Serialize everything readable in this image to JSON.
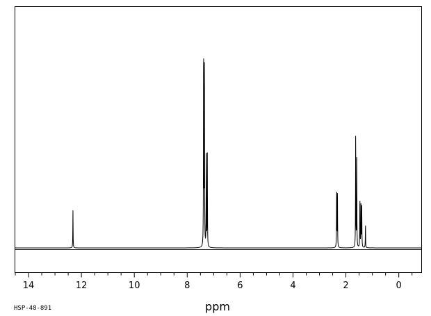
{
  "chart_data": {
    "type": "line",
    "title": "",
    "xlabel": "ppm",
    "ylabel": "",
    "sample_code": "HSP-48-891",
    "xlim": [
      14.5,
      -0.85
    ],
    "x_reversed": true,
    "ylim": [
      -0.12,
      1.05
    ],
    "major_ticks": [
      14,
      12,
      10,
      8,
      6,
      4,
      2,
      0
    ],
    "minor_tick_step": 0.5,
    "grid": false,
    "colors": {
      "line": "#000000",
      "axes": "#000000",
      "background": "#ffffff"
    },
    "series": [
      {
        "peaks": [
          {
            "x": 12.32,
            "y": 0.17
          },
          {
            "x": 7.38,
            "y": 0.94
          },
          {
            "x": 7.35,
            "y": 0.88
          },
          {
            "x": 7.28,
            "y": 0.41
          },
          {
            "x": 7.24,
            "y": 0.42
          },
          {
            "x": 2.35,
            "y": 0.27
          },
          {
            "x": 2.32,
            "y": 0.27
          },
          {
            "x": 1.63,
            "y": 0.53
          },
          {
            "x": 1.59,
            "y": 0.4
          },
          {
            "x": 1.47,
            "y": 0.23
          },
          {
            "x": 1.43,
            "y": 0.21
          },
          {
            "x": 1.4,
            "y": 0.19
          },
          {
            "x": 1.26,
            "y": 0.11
          }
        ]
      }
    ]
  }
}
